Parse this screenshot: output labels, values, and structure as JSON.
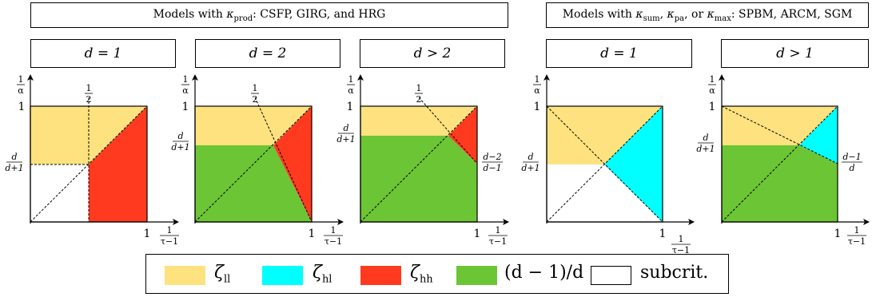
{
  "headers": {
    "prod": "Models with κprod: CSFP, GIRG, and HRG",
    "other": "Models with κsum, κpa, or κmax: SPBM, ARCM, SGM"
  },
  "panels": [
    {
      "title": "d = 1"
    },
    {
      "title": "d = 2"
    },
    {
      "title": "d > 2"
    },
    {
      "title": "d = 1"
    },
    {
      "title": "d > 1"
    }
  ],
  "axes": {
    "y_label_num": "1",
    "y_label_den": "α",
    "x_label_num": "1",
    "x_label_den": "τ−1",
    "one": "1",
    "half_num": "1",
    "half_den": "2",
    "dd1_num": "d",
    "dd1_den": "d+1",
    "dm2_num": "d−2",
    "dm2_den": "d−1",
    "dm1_num": "d−1",
    "dm1_den": "d"
  },
  "legend": [
    {
      "label": "ζll",
      "color": "#fde27f"
    },
    {
      "label": "ζhl",
      "color": "#00ffff"
    },
    {
      "label": "ζhh",
      "color": "#ff3a1f"
    },
    {
      "label": "(d − 1)/d",
      "color": "#6cc534"
    },
    {
      "label": "subcrit.",
      "color": "#ffffff"
    }
  ]
}
